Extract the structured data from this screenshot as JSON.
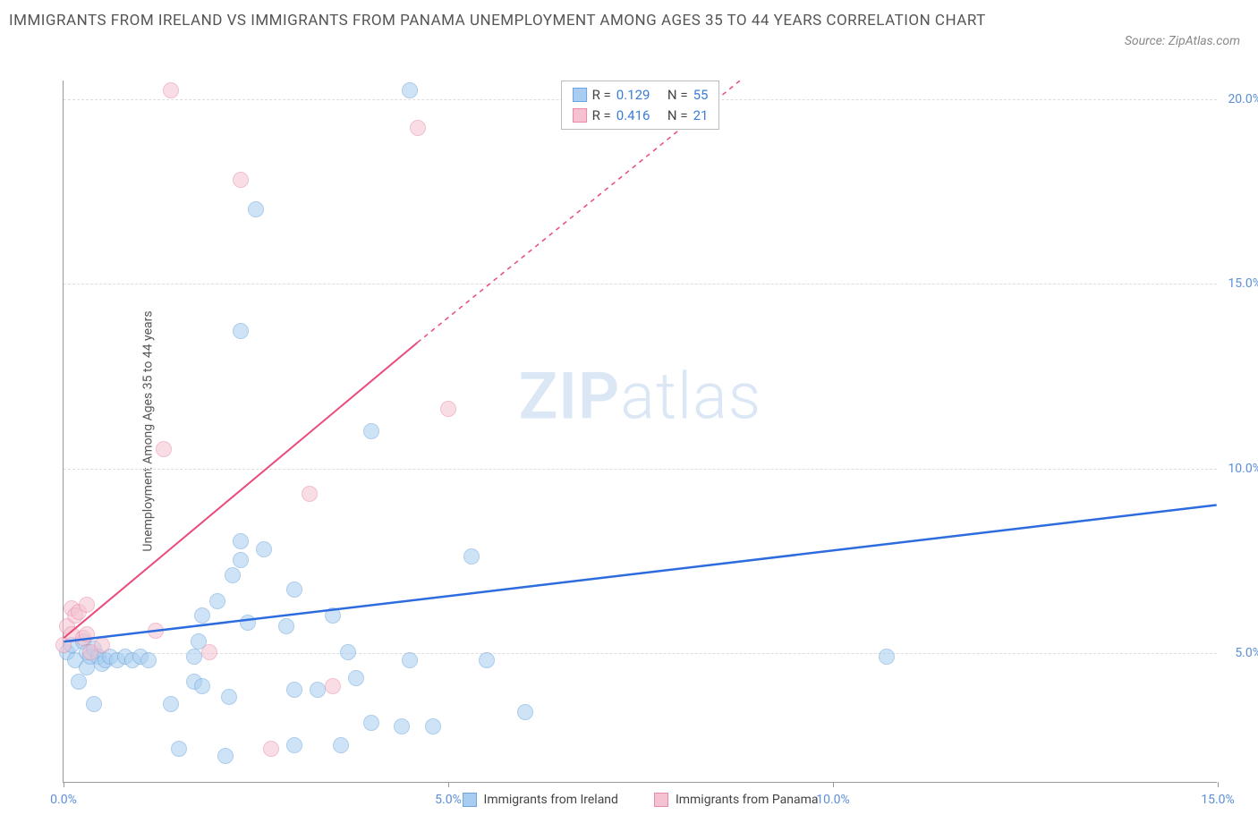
{
  "title": "IMMIGRANTS FROM IRELAND VS IMMIGRANTS FROM PANAMA UNEMPLOYMENT AMONG AGES 35 TO 44 YEARS CORRELATION CHART",
  "source": "Source: ZipAtlas.com",
  "y_axis_title": "Unemployment Among Ages 35 to 44 years",
  "watermark_bold": "ZIP",
  "watermark_light": "atlas",
  "chart": {
    "type": "scatter",
    "xlim": [
      0,
      15
    ],
    "ylim": [
      1.5,
      20.5
    ],
    "x_ticks": [
      0.0,
      5.0,
      10.0,
      15.0
    ],
    "x_tick_labels": [
      "0.0%",
      "5.0%",
      "10.0%",
      "15.0%"
    ],
    "y_ticks": [
      5.0,
      10.0,
      15.0,
      20.0
    ],
    "y_tick_labels": [
      "5.0%",
      "10.0%",
      "15.0%",
      "20.0%"
    ],
    "background_color": "#ffffff",
    "grid_color": "#dddddd",
    "axis_color": "#999999",
    "marker_radius": 9,
    "marker_opacity": 0.55,
    "series": [
      {
        "name": "Immigrants from Ireland",
        "color_fill": "#a8cdf0",
        "color_stroke": "#6ba5de",
        "line_color": "#2d6cdf",
        "R": "0.129",
        "N": "55",
        "trend": {
          "x1": 0,
          "y1": 5.3,
          "x2": 15,
          "y2": 9.0
        },
        "points": [
          [
            0.05,
            5.0
          ],
          [
            0.1,
            5.2
          ],
          [
            0.15,
            4.8
          ],
          [
            0.2,
            4.2
          ],
          [
            0.25,
            5.3
          ],
          [
            0.3,
            4.6
          ],
          [
            0.3,
            5.0
          ],
          [
            0.35,
            4.9
          ],
          [
            0.4,
            5.1
          ],
          [
            0.45,
            4.9
          ],
          [
            0.5,
            4.7
          ],
          [
            0.55,
            4.8
          ],
          [
            0.6,
            4.9
          ],
          [
            0.7,
            4.8
          ],
          [
            0.8,
            4.9
          ],
          [
            0.9,
            4.8
          ],
          [
            1.0,
            4.9
          ],
          [
            1.1,
            4.8
          ],
          [
            0.4,
            3.6
          ],
          [
            1.4,
            3.6
          ],
          [
            1.5,
            2.4
          ],
          [
            1.7,
            4.2
          ],
          [
            1.7,
            4.9
          ],
          [
            1.75,
            5.3
          ],
          [
            1.8,
            6.0
          ],
          [
            1.8,
            4.1
          ],
          [
            2.0,
            6.4
          ],
          [
            2.1,
            2.2
          ],
          [
            2.15,
            3.8
          ],
          [
            2.2,
            7.1
          ],
          [
            2.3,
            7.5
          ],
          [
            2.3,
            13.7
          ],
          [
            2.3,
            8.0
          ],
          [
            2.4,
            5.8
          ],
          [
            2.5,
            17.0
          ],
          [
            2.6,
            7.8
          ],
          [
            2.9,
            5.7
          ],
          [
            3.0,
            6.7
          ],
          [
            3.0,
            4.0
          ],
          [
            3.0,
            2.5
          ],
          [
            3.3,
            4.0
          ],
          [
            3.5,
            6.0
          ],
          [
            3.6,
            2.5
          ],
          [
            3.7,
            5.0
          ],
          [
            3.8,
            4.3
          ],
          [
            4.0,
            3.1
          ],
          [
            4.0,
            11.0
          ],
          [
            4.4,
            3.0
          ],
          [
            4.5,
            4.8
          ],
          [
            4.5,
            20.2
          ],
          [
            4.8,
            3.0
          ],
          [
            5.3,
            7.6
          ],
          [
            5.5,
            4.8
          ],
          [
            6.0,
            3.4
          ],
          [
            10.7,
            4.9
          ]
        ]
      },
      {
        "name": "Immigrants from Panama",
        "color_fill": "#f5c2d1",
        "color_stroke": "#e88aa8",
        "line_color": "#e94b7a",
        "R": "0.416",
        "N": "21",
        "trend_solid": {
          "x1": 0,
          "y1": 5.4,
          "x2": 4.6,
          "y2": 13.4
        },
        "trend_dash": {
          "x1": 4.6,
          "y1": 13.4,
          "x2": 8.8,
          "y2": 20.5
        },
        "points": [
          [
            0.0,
            5.2
          ],
          [
            0.05,
            5.7
          ],
          [
            0.1,
            6.2
          ],
          [
            0.1,
            5.5
          ],
          [
            0.15,
            6.0
          ],
          [
            0.2,
            6.1
          ],
          [
            0.25,
            5.4
          ],
          [
            0.3,
            5.5
          ],
          [
            0.3,
            6.3
          ],
          [
            0.35,
            5.0
          ],
          [
            0.5,
            5.2
          ],
          [
            1.2,
            5.6
          ],
          [
            1.3,
            10.5
          ],
          [
            1.4,
            20.2
          ],
          [
            1.9,
            5.0
          ],
          [
            2.3,
            17.8
          ],
          [
            2.7,
            2.4
          ],
          [
            3.2,
            9.3
          ],
          [
            3.5,
            4.1
          ],
          [
            4.6,
            19.2
          ],
          [
            5.0,
            11.6
          ]
        ]
      }
    ]
  },
  "legend_labels": {
    "R": "R =",
    "N": "N ="
  },
  "x_legend": [
    {
      "label": "Immigrants from Ireland",
      "fill": "#a8cdf0",
      "stroke": "#6ba5de"
    },
    {
      "label": "Immigrants from Panama",
      "fill": "#f5c2d1",
      "stroke": "#e88aa8"
    }
  ]
}
